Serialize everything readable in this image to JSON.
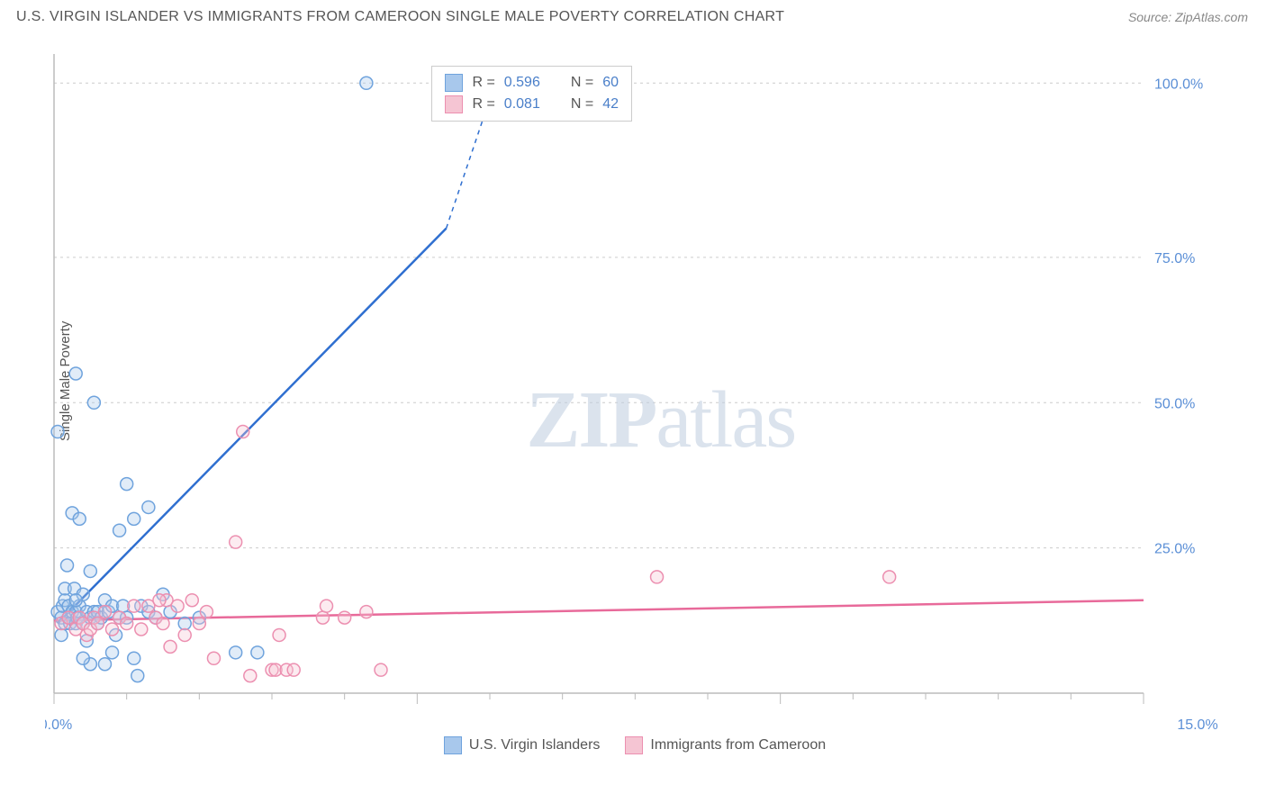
{
  "title": "U.S. VIRGIN ISLANDER VS IMMIGRANTS FROM CAMEROON SINGLE MALE POVERTY CORRELATION CHART",
  "source": "Source: ZipAtlas.com",
  "y_axis_label": "Single Male Poverty",
  "watermark_zip": "ZIP",
  "watermark_atlas": "atlas",
  "chart": {
    "type": "scatter",
    "background_color": "#ffffff",
    "grid_color": "#cccccc",
    "axis_color": "#bbbbbb",
    "xlim": [
      0,
      15
    ],
    "ylim": [
      0,
      110
    ],
    "x_ticks": [
      0,
      5,
      10,
      15
    ],
    "x_tick_labels": [
      "0.0%",
      "",
      "",
      "15.0%"
    ],
    "y_gridlines": [
      25,
      50,
      75,
      105
    ],
    "y_tick_labels": [
      "25.0%",
      "50.0%",
      "75.0%",
      "100.0%"
    ],
    "minor_x_ticks": [
      1,
      2,
      3,
      4,
      6,
      7,
      8,
      9,
      11,
      12,
      13,
      14
    ],
    "marker_radius": 7,
    "marker_stroke_width": 1.5,
    "marker_fill_opacity": 0.35,
    "trend_line_width": 2.5,
    "series": [
      {
        "name": "U.S. Virgin Islanders",
        "color_fill": "#a8c8ec",
        "color_stroke": "#6fa3dd",
        "trend_color": "#2f6fd0",
        "R": "0.596",
        "N": "60",
        "trend": {
          "x1": 0.05,
          "y1": 12,
          "x2": 5.4,
          "y2": 80,
          "dashed_to_x": 6.1,
          "dashed_to_y": 106
        },
        "points": [
          [
            0.05,
            14
          ],
          [
            0.05,
            45
          ],
          [
            0.1,
            10
          ],
          [
            0.1,
            13
          ],
          [
            0.12,
            15
          ],
          [
            0.15,
            16
          ],
          [
            0.15,
            18
          ],
          [
            0.15,
            12
          ],
          [
            0.18,
            22
          ],
          [
            0.2,
            15
          ],
          [
            0.2,
            13
          ],
          [
            0.22,
            12
          ],
          [
            0.25,
            31
          ],
          [
            0.25,
            14
          ],
          [
            0.28,
            18
          ],
          [
            0.3,
            14
          ],
          [
            0.3,
            12
          ],
          [
            0.3,
            55
          ],
          [
            0.32,
            13
          ],
          [
            0.35,
            15
          ],
          [
            0.35,
            30
          ],
          [
            0.4,
            17
          ],
          [
            0.4,
            12
          ],
          [
            0.45,
            9
          ],
          [
            0.45,
            14
          ],
          [
            0.5,
            21
          ],
          [
            0.5,
            5
          ],
          [
            0.5,
            13
          ],
          [
            0.55,
            14
          ],
          [
            0.55,
            50
          ],
          [
            0.6,
            14
          ],
          [
            0.6,
            12
          ],
          [
            0.65,
            13
          ],
          [
            0.7,
            16
          ],
          [
            0.7,
            5
          ],
          [
            0.75,
            14
          ],
          [
            0.8,
            15
          ],
          [
            0.8,
            7
          ],
          [
            0.85,
            10
          ],
          [
            0.9,
            13
          ],
          [
            0.9,
            28
          ],
          [
            0.95,
            15
          ],
          [
            1.0,
            36
          ],
          [
            1.0,
            13
          ],
          [
            1.1,
            30
          ],
          [
            1.1,
            6
          ],
          [
            1.15,
            3
          ],
          [
            1.2,
            15
          ],
          [
            1.3,
            32
          ],
          [
            1.3,
            14
          ],
          [
            1.4,
            13
          ],
          [
            1.5,
            17
          ],
          [
            1.6,
            14
          ],
          [
            1.8,
            12
          ],
          [
            2.0,
            13
          ],
          [
            2.5,
            7
          ],
          [
            2.8,
            7
          ],
          [
            4.3,
            105
          ],
          [
            0.4,
            6
          ],
          [
            0.3,
            16
          ]
        ]
      },
      {
        "name": "Immigrants from Cameroon",
        "color_fill": "#f5c5d3",
        "color_stroke": "#ec8fb0",
        "trend_color": "#e86a9a",
        "R": "0.081",
        "N": "42",
        "trend": {
          "x1": 0,
          "y1": 12.5,
          "x2": 15,
          "y2": 16
        },
        "points": [
          [
            0.1,
            12
          ],
          [
            0.2,
            13
          ],
          [
            0.3,
            11
          ],
          [
            0.35,
            13
          ],
          [
            0.4,
            12
          ],
          [
            0.45,
            10
          ],
          [
            0.5,
            11
          ],
          [
            0.55,
            13
          ],
          [
            0.6,
            12
          ],
          [
            0.7,
            14
          ],
          [
            0.8,
            11
          ],
          [
            0.9,
            13
          ],
          [
            1.0,
            12
          ],
          [
            1.1,
            15
          ],
          [
            1.2,
            11
          ],
          [
            1.3,
            15
          ],
          [
            1.4,
            13
          ],
          [
            1.5,
            12
          ],
          [
            1.55,
            16
          ],
          [
            1.6,
            8
          ],
          [
            1.7,
            15
          ],
          [
            1.8,
            10
          ],
          [
            1.9,
            16
          ],
          [
            2.0,
            12
          ],
          [
            2.1,
            14
          ],
          [
            2.5,
            26
          ],
          [
            2.6,
            45
          ],
          [
            2.7,
            3
          ],
          [
            3.0,
            4
          ],
          [
            3.05,
            4
          ],
          [
            3.1,
            10
          ],
          [
            3.2,
            4
          ],
          [
            3.3,
            4
          ],
          [
            3.7,
            13
          ],
          [
            3.75,
            15
          ],
          [
            4.0,
            13
          ],
          [
            4.3,
            14
          ],
          [
            4.5,
            4
          ],
          [
            8.3,
            20
          ],
          [
            11.5,
            20
          ],
          [
            2.2,
            6
          ],
          [
            1.45,
            16
          ]
        ]
      }
    ]
  },
  "stats_legend": {
    "r_label": "R =",
    "n_label": "N ="
  }
}
